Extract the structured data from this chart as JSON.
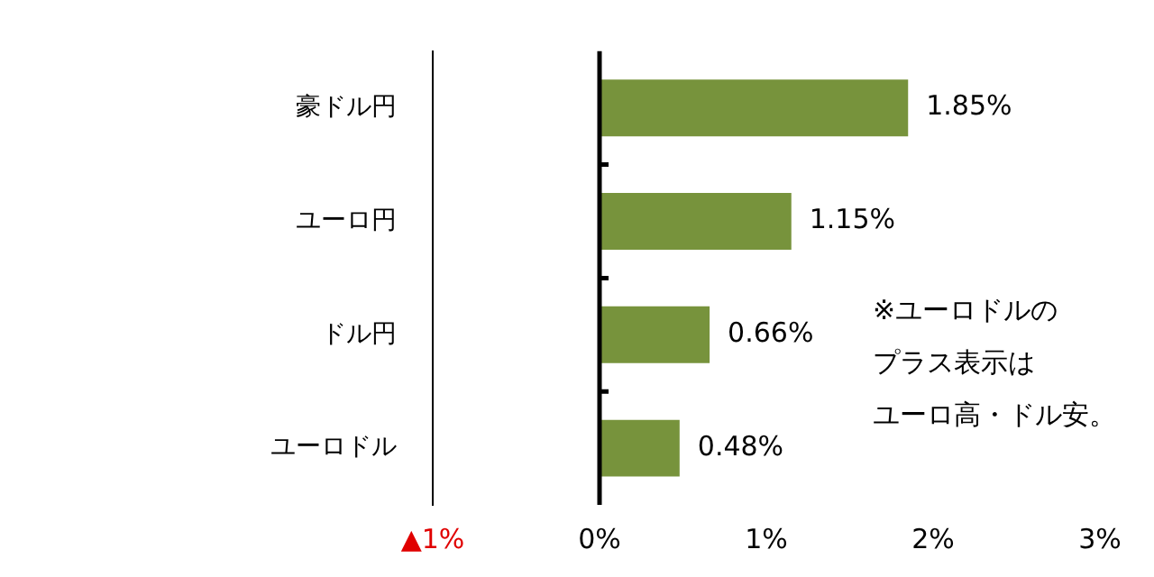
{
  "chart_data": {
    "type": "bar",
    "orientation": "horizontal",
    "categories": [
      "豪ドル円",
      "ユーロ円",
      "ドル円",
      "ユーロドル"
    ],
    "values": [
      1.85,
      1.15,
      0.66,
      0.48
    ],
    "value_labels": [
      "1.85%",
      "1.15%",
      "0.66%",
      "0.48%"
    ],
    "color": "#77933c",
    "xlim": [
      -1,
      3
    ],
    "xticks": [
      {
        "value": -1,
        "label": "▲1%"
      },
      {
        "value": 0,
        "label": "0%"
      },
      {
        "value": 1,
        "label": "1%"
      },
      {
        "value": 2,
        "label": "2%"
      },
      {
        "value": 3,
        "label": "3%"
      }
    ],
    "annotations": [
      "※ユーロドルの",
      "プラス表示は",
      "ユーロ高・ドル安。"
    ]
  }
}
